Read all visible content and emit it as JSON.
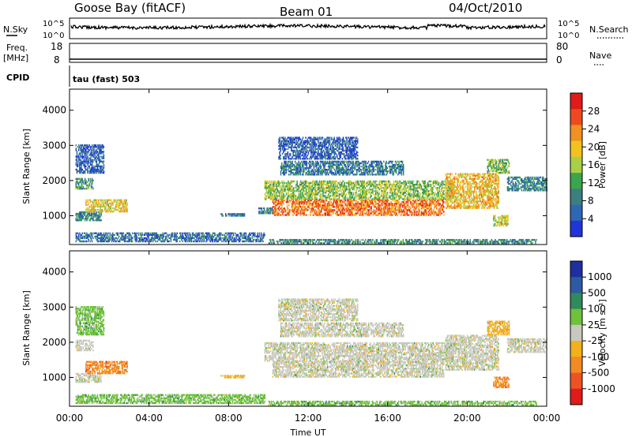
{
  "header": {
    "station": "Goose Bay (fitACF)",
    "beam": "Beam 01",
    "date": "04/Oct/2010"
  },
  "panels": {
    "nsky": {
      "label": "N.Sky",
      "ticks": [
        "10^5",
        "10^0"
      ]
    },
    "nsearch": {
      "label": "N.Search",
      "ticks": [
        "10^5",
        "10^0"
      ]
    },
    "freq": {
      "label_top": "Freq.",
      "label_bottom": "[MHz]",
      "ticks": [
        "18",
        "8"
      ]
    },
    "nave": {
      "label": "Nave",
      "ticks": [
        "80",
        "0"
      ]
    },
    "cpid": {
      "label": "CPID",
      "value": "tau (fast) 503"
    }
  },
  "colors": {
    "power": [
      "#1f35d9",
      "#2e68b5",
      "#3c7f7f",
      "#3aa54a",
      "#a8cf45",
      "#f2c21e",
      "#f39022",
      "#ef4a1f",
      "#e11a1a"
    ],
    "velocity": [
      "#1f2f9f",
      "#2d5aa3",
      "#2f8a5c",
      "#6ec23b",
      "#c8c8bf",
      "#f2b11a",
      "#f38a24",
      "#ee5224",
      "#e11a1a"
    ],
    "velocity_ground": "#c8c8bf"
  },
  "chart_data": [
    {
      "type": "heatmap",
      "name": "power",
      "xlabel": "",
      "ylabel": "Slant Range [km]",
      "xlim": [
        0,
        24
      ],
      "ylim": [
        180,
        4600
      ],
      "yticks": [
        "1000",
        "2000",
        "3000",
        "4000"
      ],
      "colorbar": {
        "label": "Power [dB]",
        "ticks": [
          "4",
          "8",
          "12",
          "16",
          "20",
          "24",
          "28"
        ],
        "range": [
          0,
          30
        ]
      },
      "regions": [
        {
          "t0": 0.3,
          "t1": 1.6,
          "r0": 850,
          "r1": 1100,
          "mid": 8
        },
        {
          "t0": 0.3,
          "t1": 1.2,
          "r0": 1750,
          "r1": 2050,
          "mid": 10
        },
        {
          "t0": 0.8,
          "t1": 2.9,
          "r0": 1100,
          "r1": 1450,
          "mid": 18
        },
        {
          "t0": 0.3,
          "t1": 1.7,
          "r0": 2200,
          "r1": 3000,
          "mid": 5
        },
        {
          "t0": 0.3,
          "t1": 9.8,
          "r0": 250,
          "r1": 500,
          "mid": 6
        },
        {
          "t0": 7.6,
          "t1": 8.8,
          "r0": 980,
          "r1": 1050,
          "mid": 6
        },
        {
          "t0": 9.5,
          "t1": 10.2,
          "r0": 1050,
          "r1": 1200,
          "mid": 7
        },
        {
          "t0": 9.8,
          "t1": 19.3,
          "r0": 1450,
          "r1": 2000,
          "mid": 14
        },
        {
          "t0": 10.2,
          "t1": 18.8,
          "r0": 1000,
          "r1": 1450,
          "mid": 23
        },
        {
          "t0": 10.6,
          "t1": 16.8,
          "r0": 2150,
          "r1": 2550,
          "mid": 7
        },
        {
          "t0": 10.5,
          "t1": 14.5,
          "r0": 2600,
          "r1": 3200,
          "mid": 5
        },
        {
          "t0": 18.9,
          "t1": 21.6,
          "r0": 1200,
          "r1": 2200,
          "mid": 19
        },
        {
          "t0": 21.0,
          "t1": 22.1,
          "r0": 2200,
          "r1": 2600,
          "mid": 13
        },
        {
          "t0": 21.3,
          "t1": 22.1,
          "r0": 700,
          "r1": 1000,
          "mid": 17
        },
        {
          "t0": 22.0,
          "t1": 24.0,
          "r0": 1700,
          "r1": 2100,
          "mid": 8
        },
        {
          "t0": 10.0,
          "t1": 23.5,
          "r0": 200,
          "r1": 320,
          "mid": 9
        }
      ]
    },
    {
      "type": "heatmap",
      "name": "velocity",
      "xlabel": "Time UT",
      "ylabel": "Slant Range [km]",
      "xlim": [
        0,
        24
      ],
      "ylim": [
        180,
        4600
      ],
      "xticks": [
        "00:00",
        "04:00",
        "08:00",
        "12:00",
        "16:00",
        "20:00",
        "00:00"
      ],
      "yticks": [
        "1000",
        "2000",
        "3000",
        "4000"
      ],
      "colorbar": {
        "label": "Velocity [m s⁻¹]",
        "ticks": [
          "1000",
          "500",
          "100",
          "25",
          "-25",
          "-100",
          "-500",
          "-1000"
        ]
      },
      "regions": [
        {
          "t0": 0.3,
          "t1": 1.6,
          "r0": 850,
          "r1": 1100,
          "mid": 4
        },
        {
          "t0": 0.3,
          "t1": 1.2,
          "r0": 1750,
          "r1": 2050,
          "mid": 4
        },
        {
          "t0": 0.8,
          "t1": 2.9,
          "r0": 1100,
          "r1": 1450,
          "mid": 6
        },
        {
          "t0": 0.3,
          "t1": 1.7,
          "r0": 2200,
          "r1": 3000,
          "mid": 3
        },
        {
          "t0": 0.3,
          "t1": 9.8,
          "r0": 250,
          "r1": 500,
          "mid": 3
        },
        {
          "t0": 7.6,
          "t1": 8.8,
          "r0": 980,
          "r1": 1050,
          "mid": 5
        },
        {
          "t0": 9.8,
          "t1": 19.3,
          "r0": 1450,
          "r1": 2000,
          "mid": 4
        },
        {
          "t0": 10.2,
          "t1": 18.8,
          "r0": 1000,
          "r1": 1450,
          "mid": 4
        },
        {
          "t0": 10.6,
          "t1": 16.8,
          "r0": 2150,
          "r1": 2550,
          "mid": 4
        },
        {
          "t0": 10.5,
          "t1": 14.5,
          "r0": 2600,
          "r1": 3200,
          "mid": 4
        },
        {
          "t0": 18.9,
          "t1": 21.6,
          "r0": 1200,
          "r1": 2200,
          "mid": 4
        },
        {
          "t0": 21.0,
          "t1": 22.1,
          "r0": 2200,
          "r1": 2600,
          "mid": 5
        },
        {
          "t0": 21.3,
          "t1": 22.1,
          "r0": 700,
          "r1": 1000,
          "mid": 6
        },
        {
          "t0": 22.0,
          "t1": 24.0,
          "r0": 1700,
          "r1": 2100,
          "mid": 4
        },
        {
          "t0": 10.0,
          "t1": 23.5,
          "r0": 200,
          "r1": 320,
          "mid": 3
        }
      ]
    }
  ]
}
